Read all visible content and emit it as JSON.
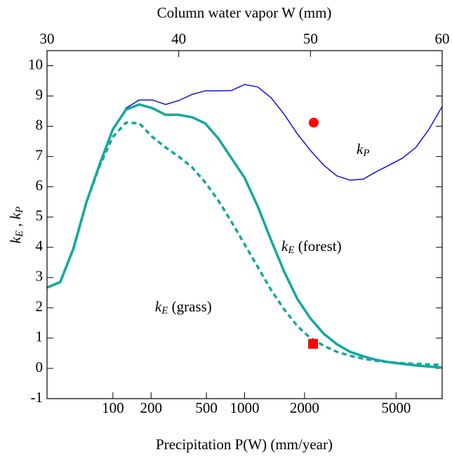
{
  "chart_data": {
    "type": "line",
    "top_axis_label": "Column water vapor W (mm)",
    "x_label": "Precipitation P(W) (mm/year)",
    "y_label": {
      "k1": "k",
      "sub1": "E",
      "sep": " , ",
      "k2": "k",
      "sub2": "P"
    },
    "x": [
      30,
      31,
      32,
      33,
      34,
      35,
      36,
      37,
      38,
      39,
      40,
      41,
      42,
      43,
      44,
      45,
      46,
      47,
      48,
      49,
      50,
      51,
      52,
      53,
      54,
      55,
      56,
      57,
      58,
      59,
      60
    ],
    "xlim": [
      30,
      60
    ],
    "xticks": [
      30,
      40,
      50,
      60
    ],
    "x2ticks": [
      {
        "value": 35.0,
        "label": "100"
      },
      {
        "value": 37.9,
        "label": "200"
      },
      {
        "value": 42.1,
        "label": "500"
      },
      {
        "value": 45.0,
        "label": "1000"
      },
      {
        "value": 49.55,
        "label": "2000"
      },
      {
        "value": 56.5,
        "label": "5000"
      }
    ],
    "ylim": [
      -1,
      10.5
    ],
    "yticks": [
      -1,
      0,
      1,
      2,
      3,
      4,
      5,
      6,
      7,
      8,
      9,
      10
    ],
    "series": [
      {
        "color": "#1010e0",
        "width": 1.5,
        "dash": false,
        "values": [
          2.67,
          2.85,
          3.95,
          5.5,
          6.75,
          7.9,
          8.6,
          8.87,
          8.87,
          8.72,
          8.85,
          9.05,
          9.17,
          9.17,
          9.18,
          9.38,
          9.3,
          8.95,
          8.4,
          7.75,
          7.2,
          6.72,
          6.36,
          6.22,
          6.25,
          6.5,
          6.72,
          6.95,
          7.3,
          7.9,
          8.65
        ]
      },
      {
        "color": "#12a89e",
        "width": 3.5,
        "dash": false,
        "values": [
          2.67,
          2.85,
          3.95,
          5.5,
          6.75,
          7.9,
          8.55,
          8.72,
          8.6,
          8.38,
          8.38,
          8.3,
          8.1,
          7.6,
          6.95,
          6.3,
          5.35,
          4.25,
          3.2,
          2.3,
          1.65,
          1.15,
          0.8,
          0.55,
          0.4,
          0.28,
          0.2,
          0.15,
          0.1,
          0.06,
          0.03
        ]
      },
      {
        "color": "#12a89e",
        "width": 3.5,
        "dash": true,
        "values": [
          2.67,
          2.85,
          3.95,
          5.5,
          6.7,
          7.65,
          8.12,
          8.1,
          7.65,
          7.3,
          7.0,
          6.65,
          6.15,
          5.55,
          4.85,
          4.1,
          3.35,
          2.6,
          1.95,
          1.4,
          1.0,
          0.75,
          0.55,
          0.42,
          0.32,
          0.25,
          0.2,
          0.17,
          0.15,
          0.13,
          0.11
        ]
      }
    ],
    "points": [
      {
        "x": 50.25,
        "y": 8.12,
        "marker": "circle",
        "color": "#ff0000"
      },
      {
        "x": 50.2,
        "y": 0.81,
        "marker": "square",
        "color": "#ff0000"
      }
    ],
    "annotations": [
      {
        "text": "k",
        "subscript": "P",
        "suffix": "",
        "x": 53.5,
        "y": 7.2
      },
      {
        "text": "k",
        "subscript": "E",
        "suffix": " (forest)",
        "x": 47.8,
        "y": 4.0
      },
      {
        "text": "k",
        "subscript": "E",
        "suffix": " (grass)",
        "x": 38.2,
        "y": 2.0
      }
    ]
  }
}
